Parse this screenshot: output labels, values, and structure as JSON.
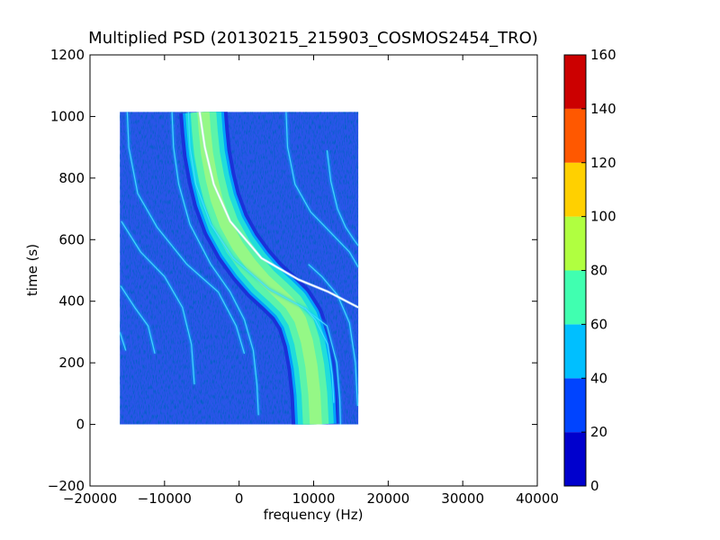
{
  "chart_data": {
    "type": "heatmap",
    "title": "Multiplied PSD (20130215_215903_COSMOS2454_TRO)",
    "xlabel": "frequency (Hz)",
    "ylabel": "time (s)",
    "xlim": [
      -20000,
      40000
    ],
    "ylim": [
      -200,
      1200
    ],
    "xticks": [
      "−20000",
      "−10000",
      "0",
      "10000",
      "20000",
      "30000",
      "40000"
    ],
    "yticks": [
      "−200",
      "0",
      "200",
      "400",
      "600",
      "800",
      "1000",
      "1200"
    ],
    "data_extent": {
      "frequency": [
        -16000,
        16000
      ],
      "time": [
        0,
        1015
      ]
    },
    "colorscale": "jet",
    "colorbar": {
      "levels": [
        0,
        20,
        40,
        60,
        80,
        100,
        120,
        140,
        160
      ],
      "tick_labels": [
        "0",
        "20",
        "40",
        "60",
        "80",
        "100",
        "120",
        "140",
        "160"
      ],
      "colors": [
        "#0000cd",
        "#0044ff",
        "#00bfff",
        "#40ffb0",
        "#b0ff40",
        "#ffd000",
        "#ff5800",
        "#cc0000"
      ]
    },
    "grid": false,
    "main_trace": {
      "points": [
        [
          -4800,
          1015
        ],
        [
          -4600,
          950
        ],
        [
          -4300,
          880
        ],
        [
          -3700,
          800
        ],
        [
          -3000,
          730
        ],
        [
          -1800,
          650
        ],
        [
          -200,
          580
        ],
        [
          1600,
          520
        ],
        [
          3400,
          470
        ],
        [
          5200,
          430
        ],
        [
          6900,
          390
        ],
        [
          8200,
          340
        ],
        [
          9100,
          270
        ],
        [
          9700,
          190
        ],
        [
          10100,
          100
        ],
        [
          10300,
          0
        ]
      ],
      "band_halfwidth_hz": 2400
    },
    "white_trace": {
      "points": [
        [
          -5300,
          1015
        ],
        [
          -4600,
          900
        ],
        [
          -3400,
          780
        ],
        [
          -1200,
          660
        ],
        [
          3000,
          540
        ],
        [
          8000,
          470
        ],
        [
          12000,
          430
        ],
        [
          16000,
          380
        ]
      ]
    },
    "faint_traces": [
      {
        "points": [
          [
            -9000,
            1015
          ],
          [
            -8800,
            900
          ],
          [
            -8100,
            780
          ],
          [
            -6600,
            650
          ],
          [
            -3800,
            520
          ],
          [
            -1200,
            430
          ],
          [
            700,
            340
          ],
          [
            1900,
            240
          ],
          [
            2400,
            130
          ],
          [
            2600,
            30
          ]
        ]
      },
      {
        "points": [
          [
            -6800,
            1015
          ],
          [
            -6600,
            900
          ],
          [
            -5800,
            780
          ],
          [
            -3800,
            650
          ],
          [
            -800,
            540
          ],
          [
            4000,
            440
          ],
          [
            8600,
            380
          ],
          [
            11800,
            320
          ],
          [
            13100,
            200
          ],
          [
            13500,
            80
          ],
          [
            13600,
            0
          ]
        ]
      },
      {
        "points": [
          [
            -15000,
            1015
          ],
          [
            -14800,
            900
          ],
          [
            -13600,
            750
          ],
          [
            -11000,
            640
          ],
          [
            -7000,
            520
          ],
          [
            -2800,
            430
          ],
          [
            -400,
            320
          ],
          [
            700,
            230
          ]
        ]
      },
      {
        "points": [
          [
            -15800,
            660
          ],
          [
            -13200,
            560
          ],
          [
            -10000,
            480
          ],
          [
            -7600,
            380
          ],
          [
            -6400,
            260
          ],
          [
            -6000,
            130
          ]
        ]
      },
      {
        "points": [
          [
            -15900,
            450
          ],
          [
            -14000,
            380
          ],
          [
            -12200,
            320
          ],
          [
            -11300,
            230
          ]
        ]
      },
      {
        "points": [
          [
            -16000,
            300
          ],
          [
            -15200,
            240
          ]
        ]
      },
      {
        "points": [
          [
            6300,
            1015
          ],
          [
            6500,
            900
          ],
          [
            7500,
            780
          ],
          [
            9600,
            690
          ],
          [
            12400,
            620
          ],
          [
            14800,
            560
          ],
          [
            16000,
            510
          ]
        ]
      },
      {
        "points": [
          [
            11800,
            890
          ],
          [
            12300,
            790
          ],
          [
            13200,
            700
          ],
          [
            14300,
            640
          ],
          [
            15400,
            600
          ],
          [
            16000,
            580
          ]
        ]
      },
      {
        "points": [
          [
            8800,
            380
          ],
          [
            10200,
            340
          ],
          [
            11900,
            260
          ],
          [
            12500,
            160
          ],
          [
            12700,
            70
          ]
        ]
      },
      {
        "points": [
          [
            9300,
            520
          ],
          [
            11100,
            480
          ],
          [
            13200,
            420
          ],
          [
            14800,
            330
          ],
          [
            15600,
            200
          ],
          [
            15900,
            60
          ]
        ]
      }
    ]
  }
}
